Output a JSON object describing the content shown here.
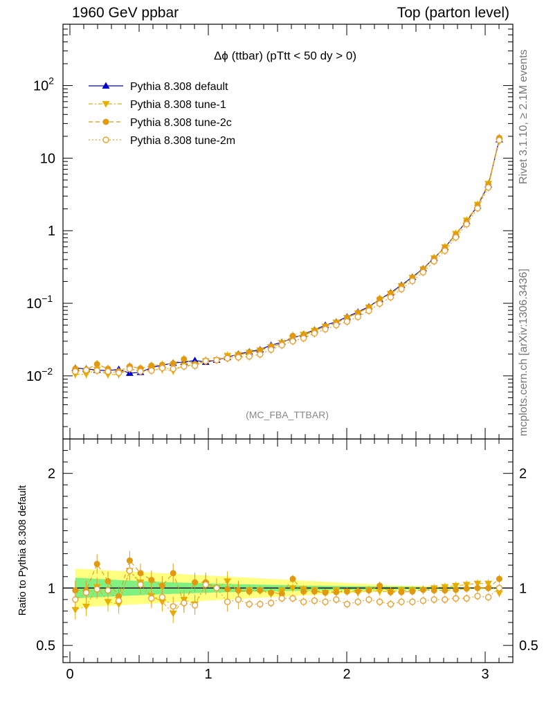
{
  "header": {
    "energy_label": "1960 GeV ppbar",
    "process_label": "Top (parton level)"
  },
  "side_labels": {
    "rivet": "Rivet 3.1.10, ≥ 2.1M events",
    "mcplots": "mcplots.cern.ch [arXiv:1306.3436]"
  },
  "analysis_tag": "(MC_FBA_TTBAR)",
  "colors": {
    "default": "#0000cc",
    "tune1": "#e6b000",
    "tune2c": "#e09a10",
    "tune2m": "#e8a030",
    "band_inner": "#80f080",
    "band_outer": "#ffff80"
  },
  "chart_data": [
    {
      "type": "line",
      "title": "Δϕ (ttbar) (pTtt < 50 dy > 0)",
      "title_prefix": "Δϕ",
      "title_suffix": " (ttbar) (pTtt < 50 dy > 0)",
      "xlabel": "",
      "ylabel": "",
      "yscale": "log",
      "xlim": [
        -0.05,
        3.2
      ],
      "ylim": [
        0.00135,
        700
      ],
      "yticks": [
        {
          "value": 0.01,
          "base": "10",
          "exp": "−2"
        },
        {
          "value": 0.1,
          "base": "10",
          "exp": "−1"
        },
        {
          "value": 1,
          "base": "1",
          "exp": ""
        },
        {
          "value": 10,
          "base": "10",
          "exp": ""
        },
        {
          "value": 100,
          "base": "10",
          "exp": "2"
        }
      ],
      "legend_position": "top-left",
      "x": [
        0.039,
        0.118,
        0.196,
        0.275,
        0.353,
        0.432,
        0.51,
        0.589,
        0.667,
        0.746,
        0.824,
        0.903,
        0.981,
        1.06,
        1.138,
        1.217,
        1.296,
        1.374,
        1.453,
        1.531,
        1.61,
        1.688,
        1.767,
        1.845,
        1.924,
        2.002,
        2.081,
        2.16,
        2.238,
        2.317,
        2.395,
        2.474,
        2.552,
        2.631,
        2.709,
        2.788,
        2.866,
        2.945,
        3.023,
        3.102
      ],
      "series": [
        {
          "name": "Pythia 8.308 default",
          "key": "default",
          "marker": "triangle-up",
          "line": "solid",
          "values": [
            0.0128,
            0.0125,
            0.012,
            0.0118,
            0.0123,
            0.0109,
            0.0112,
            0.013,
            0.014,
            0.015,
            0.0155,
            0.0163,
            0.0155,
            0.0165,
            0.018,
            0.02,
            0.0215,
            0.023,
            0.0265,
            0.029,
            0.033,
            0.0375,
            0.043,
            0.05,
            0.0555,
            0.065,
            0.076,
            0.09,
            0.113,
            0.14,
            0.178,
            0.23,
            0.3,
            0.42,
            0.59,
            0.89,
            1.35,
            2.2,
            4.3,
            18.0
          ]
        },
        {
          "name": "Pythia 8.308 tune-1",
          "key": "tune1",
          "marker": "triangle-down",
          "line": "dashdot",
          "values": [
            0.0105,
            0.0105,
            0.0122,
            0.0104,
            0.0105,
            0.0125,
            0.0118,
            0.0121,
            0.0123,
            0.0117,
            0.014,
            0.014,
            0.016,
            0.0165,
            0.019,
            0.0195,
            0.021,
            0.0225,
            0.025,
            0.0285,
            0.033,
            0.037,
            0.042,
            0.048,
            0.0545,
            0.063,
            0.073,
            0.088,
            0.11,
            0.136,
            0.174,
            0.226,
            0.295,
            0.42,
            0.595,
            0.91,
            1.39,
            2.29,
            4.45,
            17.2
          ]
        },
        {
          "name": "Pythia 8.308 tune-2c",
          "key": "tune2c",
          "marker": "circle",
          "line": "dashed",
          "values": [
            0.0125,
            0.0122,
            0.0145,
            0.0125,
            0.0115,
            0.0135,
            0.0127,
            0.0138,
            0.0142,
            0.0148,
            0.017,
            0.0145,
            0.0162,
            0.0165,
            0.0178,
            0.0195,
            0.0208,
            0.0225,
            0.0255,
            0.0275,
            0.0355,
            0.036,
            0.0415,
            0.048,
            0.0535,
            0.063,
            0.074,
            0.088,
            0.115,
            0.135,
            0.172,
            0.223,
            0.295,
            0.411,
            0.578,
            0.876,
            1.34,
            2.2,
            4.3,
            19.0
          ]
        },
        {
          "name": "Pythia 8.308 tune-2m",
          "key": "tune2m",
          "marker": "open-circle",
          "line": "dotted",
          "values": [
            0.0115,
            0.012,
            0.0118,
            0.0115,
            0.011,
            0.0125,
            0.0115,
            0.0118,
            0.0128,
            0.0125,
            0.0135,
            0.0138,
            0.016,
            0.0165,
            0.0175,
            0.018,
            0.0185,
            0.0198,
            0.023,
            0.0265,
            0.03,
            0.033,
            0.0385,
            0.044,
            0.05,
            0.056,
            0.065,
            0.079,
            0.099,
            0.121,
            0.157,
            0.203,
            0.268,
            0.38,
            0.53,
            0.81,
            1.23,
            2.04,
            3.95,
            17.7
          ]
        }
      ]
    },
    {
      "type": "line",
      "title": "",
      "ylabel": "Ratio to Pythia 8.308 default",
      "xlabel": "",
      "xlim": [
        -0.05,
        3.2
      ],
      "ylim": [
        0.35,
        2.3
      ],
      "yticks": [
        0.5,
        1,
        2
      ],
      "xticks": [
        0,
        1,
        2,
        3
      ],
      "reference": 1,
      "band_inner": [
        0.09,
        0.085,
        0.08,
        0.075,
        0.07,
        0.066,
        0.062,
        0.058,
        0.054,
        0.05,
        0.047,
        0.044,
        0.041,
        0.038,
        0.036,
        0.034,
        0.032,
        0.03,
        0.028,
        0.026,
        0.024,
        0.022,
        0.02,
        0.019,
        0.018,
        0.017,
        0.016,
        0.015,
        0.014,
        0.013,
        0.012,
        0.011,
        0.01,
        0.009,
        0.008,
        0.007,
        0.006,
        0.005,
        0.005,
        0.005
      ],
      "band_outer": [
        0.17,
        0.165,
        0.16,
        0.155,
        0.15,
        0.145,
        0.14,
        0.135,
        0.13,
        0.125,
        0.12,
        0.115,
        0.11,
        0.105,
        0.1,
        0.095,
        0.09,
        0.085,
        0.08,
        0.075,
        0.07,
        0.065,
        0.06,
        0.055,
        0.05,
        0.045,
        0.04,
        0.035,
        0.03,
        0.025,
        0.022,
        0.02,
        0.018,
        0.016,
        0.014,
        0.012,
        0.011,
        0.01,
        0.01,
        0.01
      ],
      "series": [
        {
          "name": "Pythia 8.308 tune-1",
          "key": "tune1",
          "values": [
            0.81,
            0.84,
            1.01,
            0.88,
            0.86,
            1.15,
            1.05,
            0.93,
            0.88,
            0.78,
            0.9,
            0.86,
            1.03,
            1.0,
            1.06,
            0.97,
            0.98,
            0.98,
            0.95,
            0.98,
            1.0,
            0.99,
            0.98,
            0.96,
            0.98,
            0.97,
            0.96,
            0.98,
            0.97,
            0.97,
            0.98,
            0.98,
            0.98,
            1.0,
            1.01,
            1.02,
            1.03,
            1.04,
            1.04,
            0.955
          ]
        },
        {
          "name": "Pythia 8.308 tune-2c",
          "key": "tune2c",
          "values": [
            0.98,
            0.98,
            1.21,
            1.06,
            0.93,
            1.24,
            1.13,
            1.07,
            1.02,
            1.13,
            0.87,
            1.05,
            1.05,
            1.0,
            0.99,
            0.98,
            0.97,
            0.98,
            0.96,
            0.95,
            1.08,
            0.97,
            0.97,
            0.96,
            0.965,
            0.97,
            0.975,
            0.98,
            1.02,
            0.965,
            0.965,
            0.97,
            0.985,
            0.98,
            0.98,
            0.985,
            0.995,
            1.0,
            1.0,
            1.08
          ]
        },
        {
          "name": "Pythia 8.308 tune-2m",
          "key": "tune2m",
          "values": [
            0.9,
            0.96,
            0.99,
            0.98,
            0.89,
            1.15,
            1.03,
            0.91,
            0.92,
            0.84,
            0.87,
            0.85,
            1.03,
            1.0,
            0.88,
            0.9,
            0.86,
            0.86,
            0.87,
            0.91,
            0.91,
            0.88,
            0.89,
            0.88,
            0.9,
            0.86,
            0.88,
            0.9,
            0.88,
            0.86,
            0.88,
            0.88,
            0.89,
            0.9,
            0.9,
            0.91,
            0.91,
            0.93,
            0.92,
            1.0
          ]
        }
      ]
    }
  ]
}
